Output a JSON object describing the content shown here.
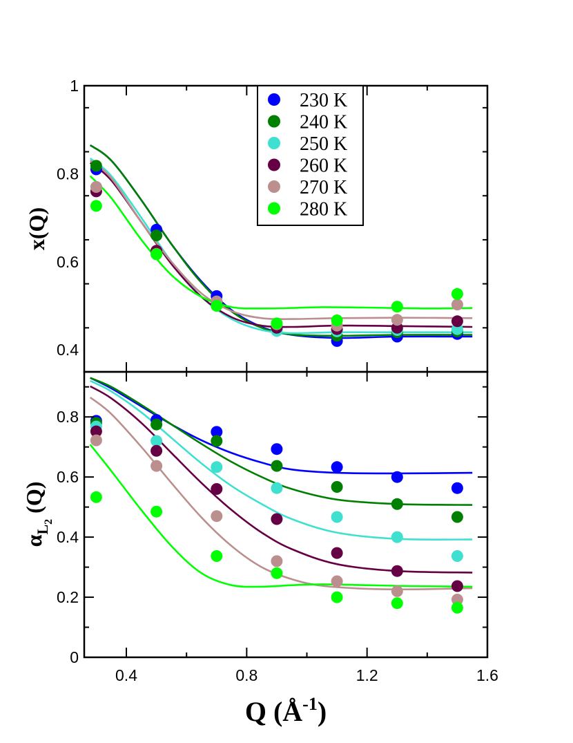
{
  "chart_data": [
    {
      "type": "scatter",
      "panel": "top",
      "ylabel": "x(Q)",
      "ylim": [
        0.35,
        1.0
      ],
      "xlim": [
        0.26,
        1.6
      ],
      "yticks": [
        0.4,
        0.6,
        0.8,
        1.0
      ],
      "ytick_labels": [
        "0.4",
        "0.6",
        "0.8",
        "1"
      ],
      "x": [
        0.3,
        0.5,
        0.7,
        0.9,
        1.1,
        1.3,
        1.5
      ],
      "series": [
        {
          "name": "230 K",
          "color": "#0000ff",
          "values": [
            0.81,
            0.673,
            0.522,
            0.452,
            0.42,
            0.43,
            0.436
          ],
          "fit": [
            [
              0.28,
              0.865
            ],
            [
              0.35,
              0.83
            ],
            [
              0.45,
              0.74
            ],
            [
              0.55,
              0.64
            ],
            [
              0.65,
              0.555
            ],
            [
              0.75,
              0.49
            ],
            [
              0.85,
              0.452
            ],
            [
              0.95,
              0.434
            ],
            [
              1.1,
              0.427
            ],
            [
              1.3,
              0.43
            ],
            [
              1.55,
              0.43
            ]
          ]
        },
        {
          "name": "240 K",
          "color": "#008000",
          "values": [
            0.818,
            0.66,
            0.51,
            0.448,
            0.432,
            0.44,
            0.442
          ],
          "fit": [
            [
              0.28,
              0.865
            ],
            [
              0.35,
              0.83
            ],
            [
              0.45,
              0.74
            ],
            [
              0.55,
              0.64
            ],
            [
              0.65,
              0.552
            ],
            [
              0.75,
              0.487
            ],
            [
              0.85,
              0.45
            ],
            [
              0.95,
              0.435
            ],
            [
              1.1,
              0.432
            ],
            [
              1.3,
              0.434
            ],
            [
              1.55,
              0.434
            ]
          ]
        },
        {
          "name": "250 K",
          "color": "#40e0d0",
          "values": [
            0.77,
            0.62,
            0.508,
            0.443,
            0.442,
            0.445,
            0.447
          ],
          "fit": [
            [
              0.28,
              0.835
            ],
            [
              0.35,
              0.795
            ],
            [
              0.45,
              0.7
            ],
            [
              0.55,
              0.6
            ],
            [
              0.65,
              0.52
            ],
            [
              0.75,
              0.47
            ],
            [
              0.85,
              0.445
            ],
            [
              0.95,
              0.438
            ],
            [
              1.1,
              0.44
            ],
            [
              1.3,
              0.44
            ],
            [
              1.55,
              0.44
            ]
          ]
        },
        {
          "name": "260 K",
          "color": "#660044",
          "values": [
            0.76,
            0.625,
            0.505,
            0.45,
            0.447,
            0.45,
            0.465
          ],
          "fit": [
            [
              0.28,
              0.825
            ],
            [
              0.35,
              0.785
            ],
            [
              0.45,
              0.69
            ],
            [
              0.55,
              0.595
            ],
            [
              0.65,
              0.52
            ],
            [
              0.75,
              0.474
            ],
            [
              0.85,
              0.455
            ],
            [
              0.95,
              0.452
            ],
            [
              1.1,
              0.455
            ],
            [
              1.3,
              0.454
            ],
            [
              1.55,
              0.452
            ]
          ]
        },
        {
          "name": "270 K",
          "color": "#bc8f8f",
          "values": [
            0.77,
            0.618,
            0.51,
            0.458,
            0.455,
            0.468,
            0.503
          ],
          "fit": [
            [
              0.28,
              0.83
            ],
            [
              0.35,
              0.79
            ],
            [
              0.45,
              0.69
            ],
            [
              0.55,
              0.6
            ],
            [
              0.65,
              0.528
            ],
            [
              0.75,
              0.488
            ],
            [
              0.85,
              0.472
            ],
            [
              0.95,
              0.47
            ],
            [
              1.1,
              0.472
            ],
            [
              1.3,
              0.473
            ],
            [
              1.55,
              0.472
            ]
          ]
        },
        {
          "name": "280 K",
          "color": "#00ff00",
          "values": [
            0.727,
            0.617,
            0.5,
            0.46,
            0.467,
            0.498,
            0.527
          ],
          "fit": [
            [
              0.28,
              0.795
            ],
            [
              0.35,
              0.745
            ],
            [
              0.45,
              0.65
            ],
            [
              0.55,
              0.57
            ],
            [
              0.65,
              0.52
            ],
            [
              0.75,
              0.497
            ],
            [
              0.85,
              0.494
            ],
            [
              0.95,
              0.495
            ],
            [
              1.05,
              0.497
            ],
            [
              1.2,
              0.496
            ],
            [
              1.4,
              0.494
            ],
            [
              1.55,
              0.495
            ]
          ]
        }
      ]
    },
    {
      "type": "scatter",
      "panel": "bottom",
      "ylabel_main": "α",
      "ylabel_sub": "L",
      "ylabel_subsub": "2",
      "ylabel_tail": " (Q)",
      "ylim": [
        0,
        0.95
      ],
      "xlim": [
        0.26,
        1.6
      ],
      "yticks": [
        0,
        0.2,
        0.4,
        0.6,
        0.8
      ],
      "ytick_labels": [
        "0",
        "0.2",
        "0.4",
        "0.6",
        "0.8"
      ],
      "xticks": [
        0.4,
        0.8,
        1.2,
        1.6
      ],
      "xtick_labels": [
        "0.4",
        "0.8",
        "1.2",
        "1.6"
      ],
      "xlabel_main": "Q (Å",
      "xlabel_sup": "-1",
      "xlabel_tail": ")",
      "x": [
        0.3,
        0.5,
        0.7,
        0.9,
        1.1,
        1.3,
        1.5
      ],
      "series": [
        {
          "name": "230 K",
          "color": "#0000ff",
          "values": [
            0.787,
            0.79,
            0.75,
            0.693,
            0.633,
            0.6,
            0.563
          ],
          "fit": [
            [
              0.28,
              0.93
            ],
            [
              0.35,
              0.895
            ],
            [
              0.45,
              0.835
            ],
            [
              0.55,
              0.775
            ],
            [
              0.65,
              0.722
            ],
            [
              0.75,
              0.68
            ],
            [
              0.85,
              0.648
            ],
            [
              0.95,
              0.625
            ],
            [
              1.1,
              0.614
            ],
            [
              1.3,
              0.612
            ],
            [
              1.55,
              0.614
            ]
          ]
        },
        {
          "name": "240 K",
          "color": "#008000",
          "values": [
            0.78,
            0.775,
            0.72,
            0.637,
            0.567,
            0.51,
            0.467
          ],
          "fit": [
            [
              0.28,
              0.93
            ],
            [
              0.35,
              0.9
            ],
            [
              0.45,
              0.84
            ],
            [
              0.55,
              0.775
            ],
            [
              0.65,
              0.71
            ],
            [
              0.75,
              0.65
            ],
            [
              0.85,
              0.6
            ],
            [
              0.95,
              0.56
            ],
            [
              1.1,
              0.525
            ],
            [
              1.3,
              0.51
            ],
            [
              1.55,
              0.507
            ]
          ]
        },
        {
          "name": "250 K",
          "color": "#40e0d0",
          "values": [
            0.768,
            0.72,
            0.633,
            0.563,
            0.467,
            0.4,
            0.337
          ],
          "fit": [
            [
              0.28,
              0.92
            ],
            [
              0.35,
              0.885
            ],
            [
              0.45,
              0.815
            ],
            [
              0.55,
              0.73
            ],
            [
              0.65,
              0.645
            ],
            [
              0.75,
              0.57
            ],
            [
              0.85,
              0.51
            ],
            [
              0.95,
              0.46
            ],
            [
              1.1,
              0.415
            ],
            [
              1.3,
              0.394
            ],
            [
              1.55,
              0.392
            ]
          ]
        },
        {
          "name": "260 K",
          "color": "#660044",
          "values": [
            0.752,
            0.687,
            0.56,
            0.46,
            0.347,
            0.287,
            0.237
          ],
          "fit": [
            [
              0.28,
              0.902
            ],
            [
              0.35,
              0.862
            ],
            [
              0.45,
              0.78
            ],
            [
              0.55,
              0.68
            ],
            [
              0.65,
              0.58
            ],
            [
              0.75,
              0.49
            ],
            [
              0.85,
              0.415
            ],
            [
              0.95,
              0.36
            ],
            [
              1.1,
              0.31
            ],
            [
              1.3,
              0.287
            ],
            [
              1.55,
              0.282
            ]
          ]
        },
        {
          "name": "270 K",
          "color": "#bc8f8f",
          "values": [
            0.722,
            0.637,
            0.47,
            0.32,
            0.253,
            0.22,
            0.192
          ],
          "fit": [
            [
              0.28,
              0.865
            ],
            [
              0.35,
              0.81
            ],
            [
              0.45,
              0.7
            ],
            [
              0.55,
              0.58
            ],
            [
              0.65,
              0.465
            ],
            [
              0.75,
              0.37
            ],
            [
              0.85,
              0.3
            ],
            [
              0.95,
              0.26
            ],
            [
              1.05,
              0.238
            ],
            [
              1.2,
              0.228
            ],
            [
              1.35,
              0.226
            ],
            [
              1.55,
              0.23
            ]
          ]
        },
        {
          "name": "280 K",
          "color": "#00ff00",
          "values": [
            0.533,
            0.485,
            0.337,
            0.28,
            0.2,
            0.18,
            0.165
          ],
          "fit": [
            [
              0.28,
              0.708
            ],
            [
              0.35,
              0.62
            ],
            [
              0.45,
              0.49
            ],
            [
              0.55,
              0.37
            ],
            [
              0.65,
              0.28
            ],
            [
              0.75,
              0.24
            ],
            [
              0.85,
              0.235
            ],
            [
              0.95,
              0.24
            ],
            [
              1.05,
              0.243
            ],
            [
              1.2,
              0.24
            ],
            [
              1.35,
              0.237
            ],
            [
              1.55,
              0.235
            ]
          ]
        }
      ]
    }
  ],
  "top_ylabel": "x(Q)",
  "legend": [
    "230 K",
    "240 K",
    "250 K",
    "260 K",
    "270 K",
    "280 K"
  ],
  "legend_placement": "top-center"
}
